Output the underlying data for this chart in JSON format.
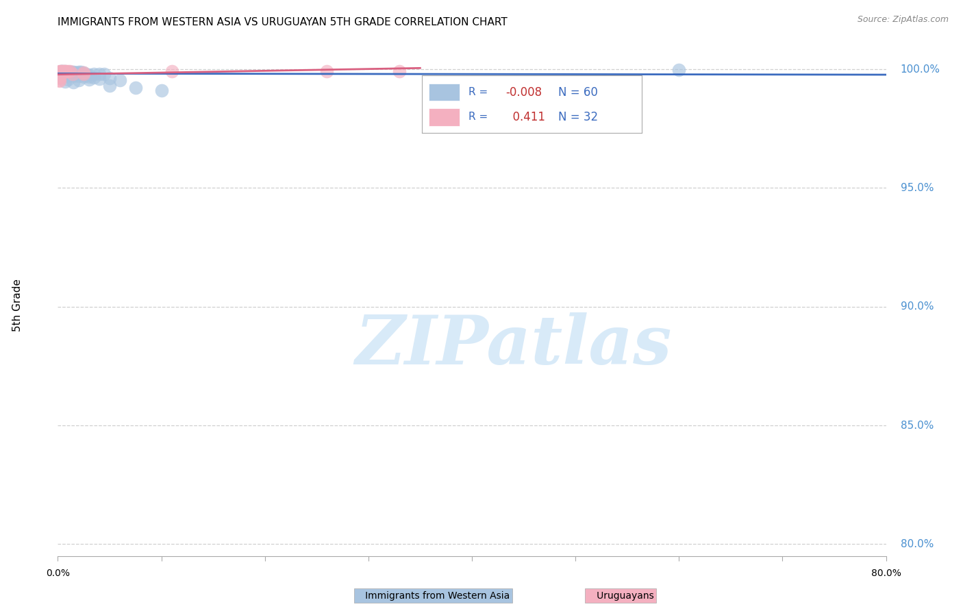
{
  "title": "IMMIGRANTS FROM WESTERN ASIA VS URUGUAYAN 5TH GRADE CORRELATION CHART",
  "source": "Source: ZipAtlas.com",
  "ylabel": "5th Grade",
  "watermark": "ZIPatlas",
  "legend": {
    "blue_r": "-0.008",
    "blue_n": "60",
    "pink_r": "0.411",
    "pink_n": "32"
  },
  "blue_scatter": [
    [
      0.002,
      0.999
    ],
    [
      0.003,
      0.9993
    ],
    [
      0.004,
      0.9992
    ],
    [
      0.005,
      0.9991
    ],
    [
      0.006,
      0.999
    ],
    [
      0.007,
      0.9992
    ],
    [
      0.008,
      0.999
    ],
    [
      0.009,
      0.9989
    ],
    [
      0.01,
      0.9988
    ],
    [
      0.011,
      0.9987
    ],
    [
      0.012,
      0.9989
    ],
    [
      0.013,
      0.9988
    ],
    [
      0.014,
      0.9987
    ],
    [
      0.015,
      0.9988
    ],
    [
      0.016,
      0.9986
    ],
    [
      0.017,
      0.9986
    ],
    [
      0.018,
      0.9986
    ],
    [
      0.02,
      0.9988
    ],
    [
      0.022,
      0.9988
    ],
    [
      0.025,
      0.9987
    ],
    [
      0.001,
      0.9983
    ],
    [
      0.003,
      0.9983
    ],
    [
      0.005,
      0.9983
    ],
    [
      0.006,
      0.9982
    ],
    [
      0.008,
      0.9982
    ],
    [
      0.01,
      0.9982
    ],
    [
      0.012,
      0.9981
    ],
    [
      0.014,
      0.9981
    ],
    [
      0.015,
      0.998
    ],
    [
      0.016,
      0.998
    ],
    [
      0.018,
      0.998
    ],
    [
      0.02,
      0.9979
    ],
    [
      0.022,
      0.9979
    ],
    [
      0.024,
      0.9979
    ],
    [
      0.026,
      0.9978
    ],
    [
      0.028,
      0.9978
    ],
    [
      0.03,
      0.9977
    ],
    [
      0.035,
      0.9979
    ],
    [
      0.04,
      0.998
    ],
    [
      0.045,
      0.9981
    ],
    [
      0.001,
      0.9972
    ],
    [
      0.005,
      0.9972
    ],
    [
      0.01,
      0.9971
    ],
    [
      0.015,
      0.9971
    ],
    [
      0.02,
      0.997
    ],
    [
      0.025,
      0.9969
    ],
    [
      0.03,
      0.9968
    ],
    [
      0.035,
      0.9967
    ],
    [
      0.05,
      0.9963
    ],
    [
      0.01,
      0.9957
    ],
    [
      0.02,
      0.9955
    ],
    [
      0.03,
      0.9957
    ],
    [
      0.04,
      0.996
    ],
    [
      0.06,
      0.9955
    ],
    [
      0.007,
      0.9947
    ],
    [
      0.015,
      0.9945
    ],
    [
      0.05,
      0.993
    ],
    [
      0.075,
      0.9923
    ],
    [
      0.1,
      0.991
    ],
    [
      0.6,
      0.9998
    ]
  ],
  "pink_scatter": [
    [
      0.002,
      0.9993
    ],
    [
      0.003,
      0.9992
    ],
    [
      0.004,
      0.9993
    ],
    [
      0.005,
      0.9993
    ],
    [
      0.006,
      0.9993
    ],
    [
      0.007,
      0.9992
    ],
    [
      0.008,
      0.9992
    ],
    [
      0.01,
      0.9992
    ],
    [
      0.012,
      0.9992
    ],
    [
      0.001,
      0.999
    ],
    [
      0.002,
      0.999
    ],
    [
      0.003,
      0.999
    ],
    [
      0.004,
      0.999
    ],
    [
      0.005,
      0.999
    ],
    [
      0.006,
      0.999
    ],
    [
      0.001,
      0.9987
    ],
    [
      0.002,
      0.9987
    ],
    [
      0.003,
      0.9987
    ],
    [
      0.001,
      0.9985
    ],
    [
      0.002,
      0.9985
    ],
    [
      0.001,
      0.998
    ],
    [
      0.014,
      0.9979
    ],
    [
      0.025,
      0.9987
    ],
    [
      0.025,
      0.9979
    ],
    [
      0.001,
      0.9972
    ],
    [
      0.001,
      0.9965
    ],
    [
      0.002,
      0.9963
    ],
    [
      0.11,
      0.9993
    ],
    [
      0.26,
      0.9993
    ],
    [
      0.33,
      0.9993
    ],
    [
      0.001,
      0.9955
    ],
    [
      0.002,
      0.995
    ]
  ],
  "blue_line": {
    "x0": 0.0,
    "x1": 0.8,
    "y0": 0.9982,
    "y1": 0.9977
  },
  "pink_line": {
    "x0": 0.0,
    "x1": 0.35,
    "y0": 0.9978,
    "y1": 1.0005
  },
  "xlim": [
    0.0,
    0.8
  ],
  "ylim": [
    0.795,
    1.006
  ],
  "yticks": [
    0.8,
    0.85,
    0.9,
    0.95,
    1.0
  ],
  "ytick_labels": [
    "80.0%",
    "85.0%",
    "90.0%",
    "95.0%",
    "100.0%"
  ],
  "blue_color": "#a8c4e0",
  "pink_color": "#f4b0c0",
  "blue_line_color": "#3b6bbf",
  "pink_line_color": "#d96080",
  "grid_color": "#d0d0d0",
  "title_fontsize": 11,
  "source_fontsize": 9,
  "watermark_color": "#d8eaf8",
  "right_label_color": "#4a90d0",
  "legend_blue_text_color": "#3b6bbf",
  "legend_pink_text_color": "#3b6bbf"
}
